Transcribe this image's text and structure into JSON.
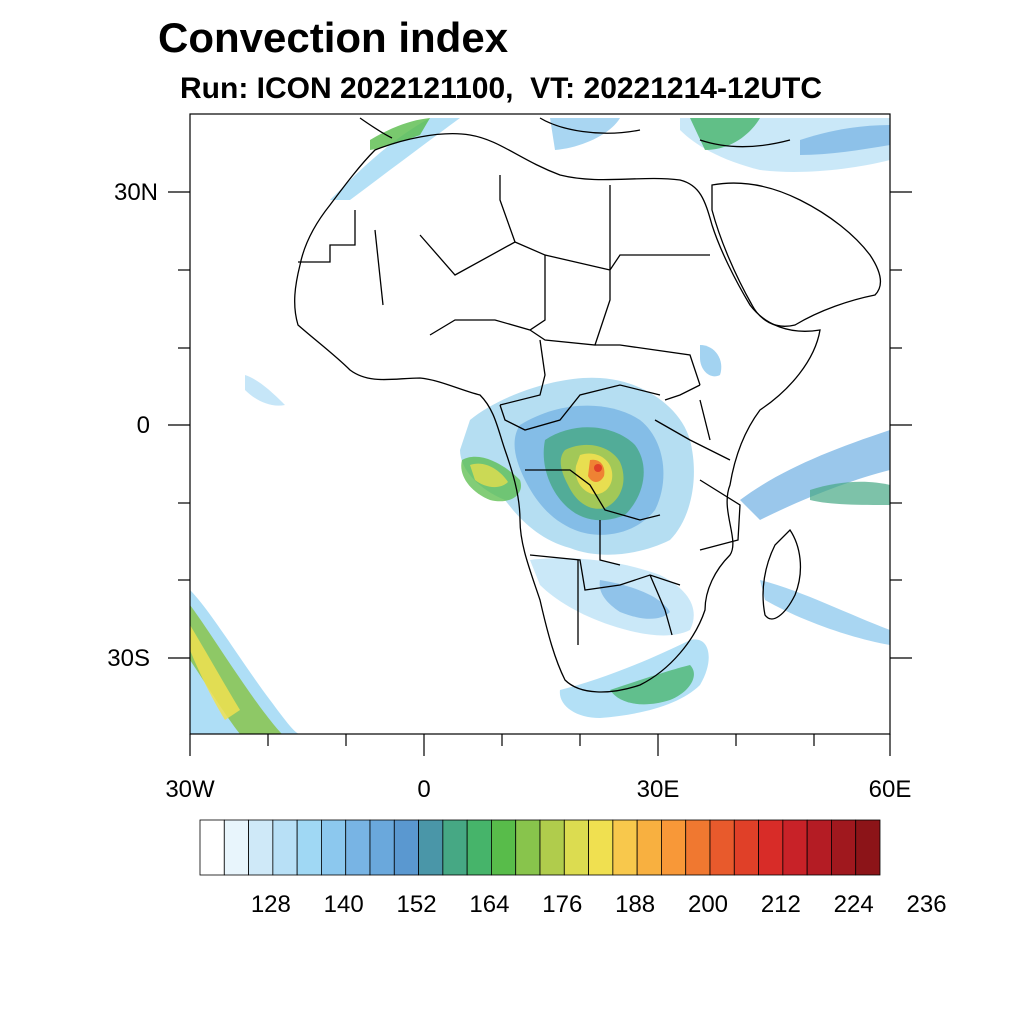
{
  "title": "Convection index",
  "subtitle": "Run: ICON 2022121100,  VT: 20221214-12UTC",
  "map": {
    "lat_labels": [
      "30N",
      "0",
      "30S"
    ],
    "lon_labels": [
      "30W",
      "0",
      "30E",
      "60E"
    ]
  },
  "colorbar": {
    "colors": [
      "#ffffff",
      "#e8f5fc",
      "#cfe9f8",
      "#b8e0f6",
      "#a0d8f4",
      "#8cc8ee",
      "#78b4e4",
      "#6aa8dc",
      "#5a98d0",
      "#4a96a8",
      "#46a884",
      "#46b46a",
      "#58bc4a",
      "#88c44c",
      "#b0cc4c",
      "#dcdc50",
      "#f0e050",
      "#f8c84c",
      "#f8b040",
      "#f89838",
      "#f07830",
      "#e85a2c",
      "#e04028",
      "#d82c28",
      "#c82228",
      "#b41c24",
      "#a0181e",
      "#8c1418"
    ],
    "labels": [
      "128",
      "140",
      "152",
      "164",
      "176",
      "188",
      "200",
      "212",
      "224",
      "236"
    ]
  }
}
